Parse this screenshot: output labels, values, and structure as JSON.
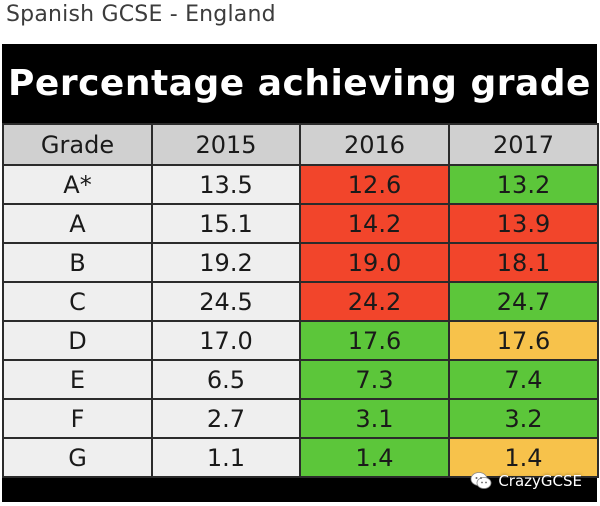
{
  "caption": "Spanish GCSE - England",
  "chart_data": {
    "type": "table",
    "title": "Percentage achieving grade",
    "columns": [
      "Grade",
      "2015",
      "2016",
      "2017"
    ],
    "rows": [
      {
        "grade": "A*",
        "values": [
          "13.5",
          "12.6",
          "13.2"
        ],
        "colors": [
          "white",
          "red",
          "green"
        ]
      },
      {
        "grade": "A",
        "values": [
          "15.1",
          "14.2",
          "13.9"
        ],
        "colors": [
          "white",
          "red",
          "red"
        ]
      },
      {
        "grade": "B",
        "values": [
          "19.2",
          "19.0",
          "18.1"
        ],
        "colors": [
          "white",
          "red",
          "red"
        ]
      },
      {
        "grade": "C",
        "values": [
          "24.5",
          "24.2",
          "24.7"
        ],
        "colors": [
          "white",
          "red",
          "green"
        ]
      },
      {
        "grade": "D",
        "values": [
          "17.0",
          "17.6",
          "17.6"
        ],
        "colors": [
          "white",
          "green",
          "amber"
        ]
      },
      {
        "grade": "E",
        "values": [
          "6.5",
          "7.3",
          "7.4"
        ],
        "colors": [
          "white",
          "green",
          "green"
        ]
      },
      {
        "grade": "F",
        "values": [
          "2.7",
          "3.1",
          "3.2"
        ],
        "colors": [
          "white",
          "green",
          "green"
        ]
      },
      {
        "grade": "G",
        "values": [
          "1.1",
          "1.4",
          "1.4"
        ],
        "colors": [
          "white",
          "green",
          "amber"
        ]
      }
    ]
  },
  "colors": {
    "red": "#f2452b",
    "green": "#5cc63a",
    "amber": "#f7c24b",
    "white": "#efefef",
    "header": "#d0d0d0",
    "title_bg": "#000000"
  },
  "watermark": {
    "text": "CrazyGCSE",
    "icon": "wechat-icon"
  }
}
